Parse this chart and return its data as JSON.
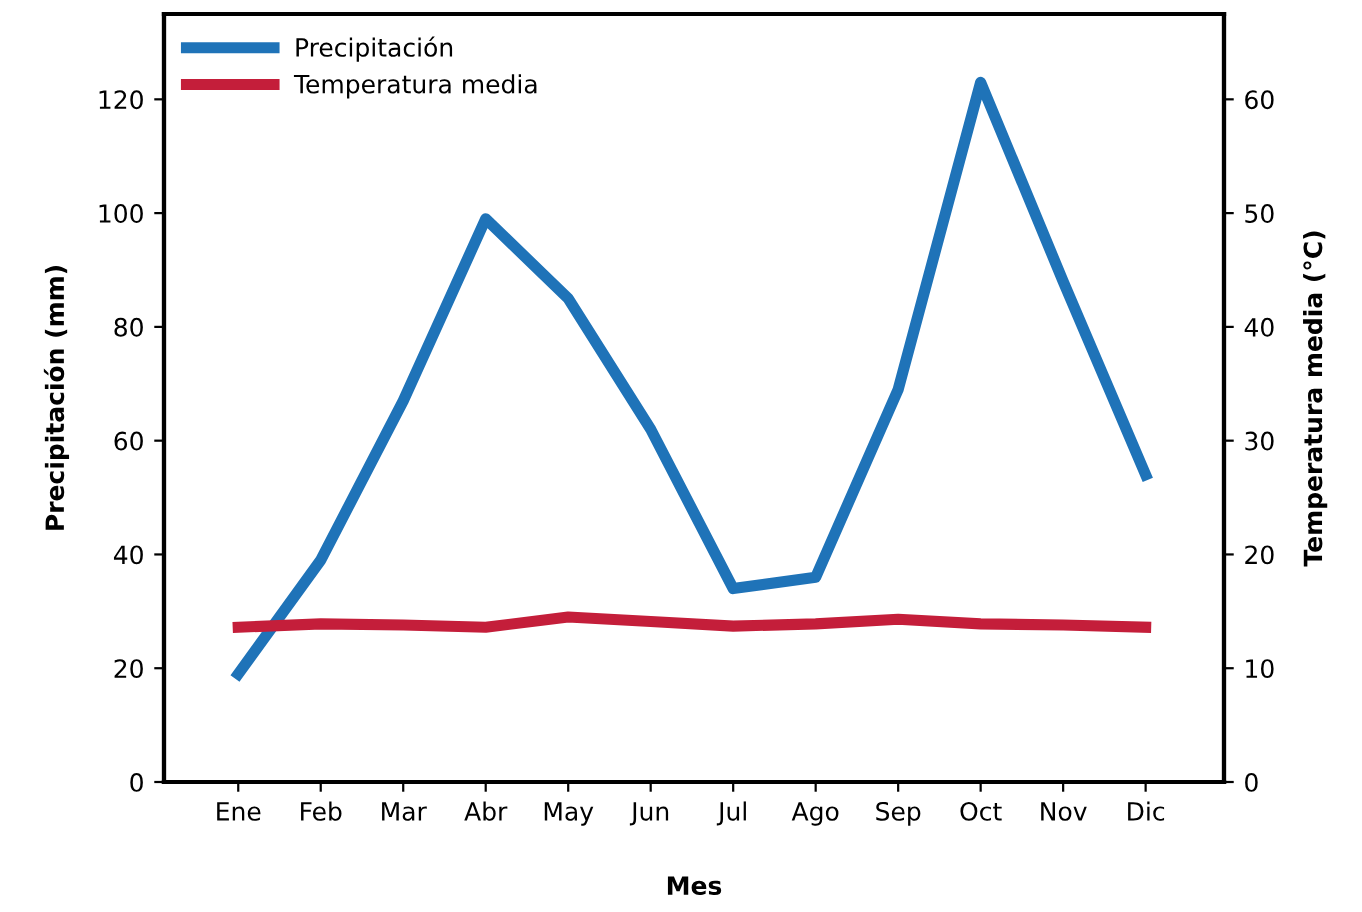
{
  "chart_data": {
    "type": "line",
    "xlabel": "Mes",
    "ylabel": "Precipitación (mm)",
    "y2label": "Temperatura media (°C)",
    "categories": [
      "Ene",
      "Feb",
      "Mar",
      "Abr",
      "May",
      "Jun",
      "Jul",
      "Ago",
      "Sep",
      "Oct",
      "Nov",
      "Dic"
    ],
    "series": [
      {
        "name": "Precipitación",
        "color": "#1f73b8",
        "values": [
          19,
          39,
          67,
          99,
          85,
          62,
          34,
          36,
          69,
          123,
          88,
          54
        ]
      },
      {
        "name": "Temperatura media",
        "color": "#c41e3a",
        "axis": "y2",
        "values": [
          13.6,
          13.9,
          13.8,
          13.6,
          14.5,
          14.1,
          13.7,
          13.9,
          14.3,
          13.9,
          13.8,
          13.6
        ]
      }
    ],
    "ylim": [
      0,
      135
    ],
    "yticks": [
      0,
      20,
      40,
      60,
      80,
      100,
      120
    ],
    "y2lim": [
      0,
      67.5
    ],
    "y2ticks": [
      0,
      10,
      20,
      30,
      40,
      50,
      60
    ],
    "legend": "top left",
    "grid": false,
    "marker": "none",
    "line_style": "solid"
  }
}
